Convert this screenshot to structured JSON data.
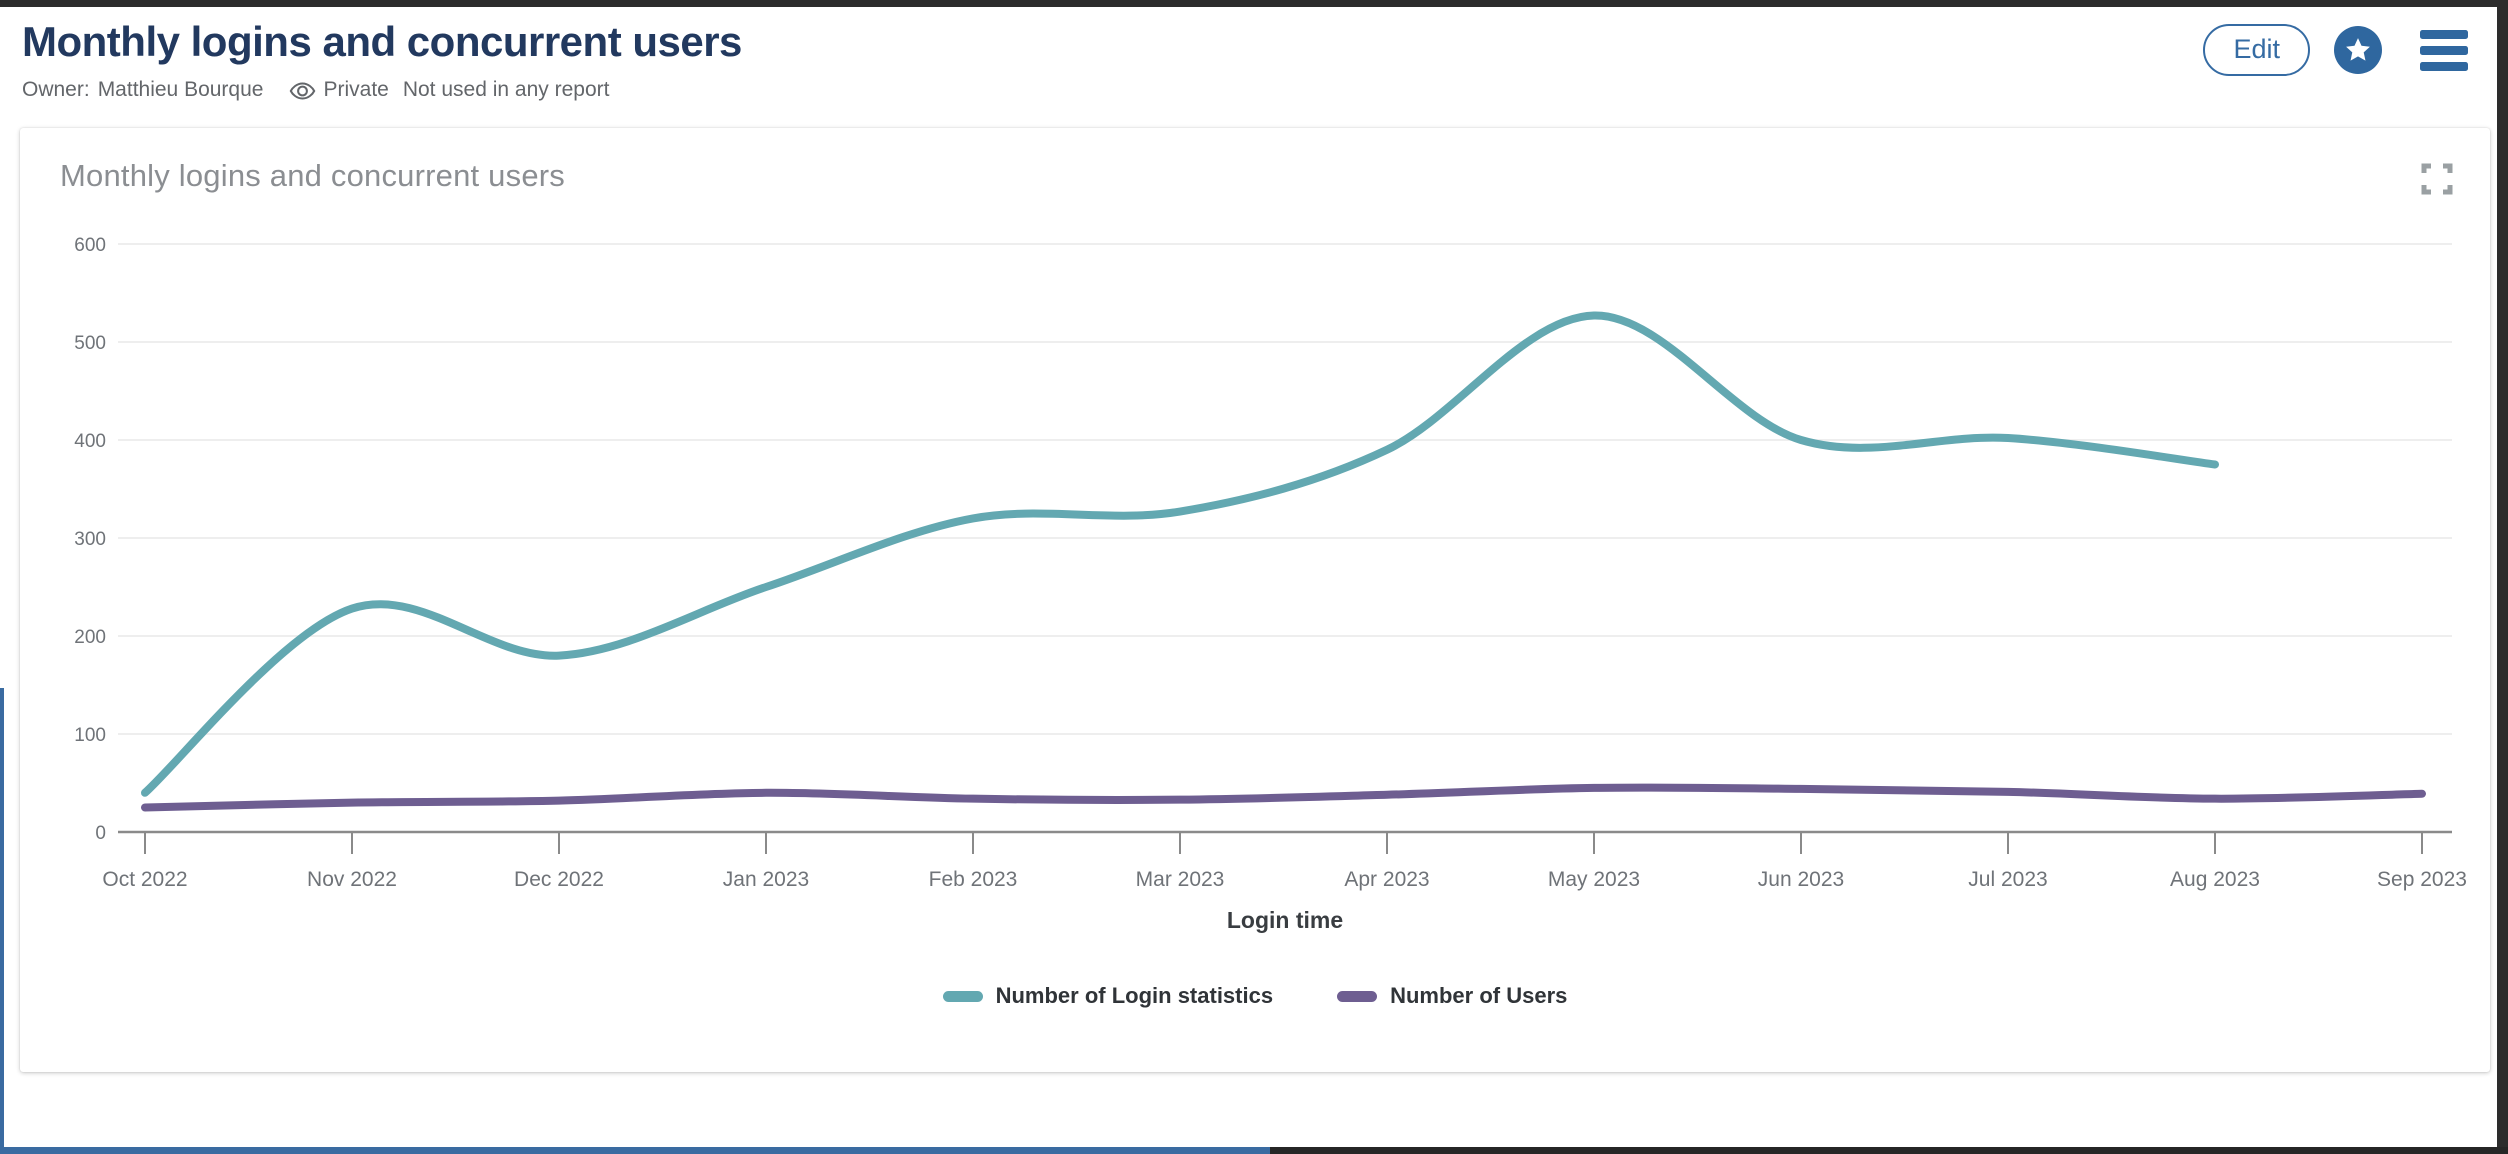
{
  "header": {
    "title": "Monthly logins and concurrent users",
    "owner_label": "Owner:",
    "owner_name": "Matthieu Bourque",
    "visibility": "Private",
    "usage_note": "Not used in any report",
    "edit_label": "Edit"
  },
  "card": {
    "title": "Monthly logins and concurrent users"
  },
  "colors": {
    "accent_blue": "#2f679f",
    "title_navy": "#22395f",
    "meta_gray": "#63666a",
    "card_title_gray": "#8b8e92",
    "axis_text": "#6f7378",
    "grid_line": "#e9e9e9",
    "axis_line": "#8a8a8a"
  },
  "chart_data": {
    "type": "line",
    "title": "Monthly logins and concurrent users",
    "xlabel": "Login time",
    "ylabel": "",
    "ylim": [
      0,
      600
    ],
    "yticks": [
      0,
      100,
      200,
      300,
      400,
      500,
      600
    ],
    "grid": true,
    "smooth": true,
    "legend_position": "bottom",
    "categories": [
      "Oct 2022",
      "Nov 2022",
      "Dec 2022",
      "Jan 2023",
      "Feb 2023",
      "Mar 2023",
      "Apr 2023",
      "May 2023",
      "Jun 2023",
      "Jul 2023",
      "Aug 2023",
      "Sep 2023"
    ],
    "series": [
      {
        "name": "Number of Login statistics",
        "color": "#63a8b1",
        "values": [
          40,
          228,
          180,
          250,
          320,
          327,
          390,
          527,
          400,
          402,
          375,
          null
        ]
      },
      {
        "name": "Number of Users",
        "color": "#6e5e91",
        "values": [
          25,
          30,
          32,
          40,
          34,
          33,
          38,
          45,
          44,
          41,
          34,
          39
        ]
      }
    ]
  }
}
